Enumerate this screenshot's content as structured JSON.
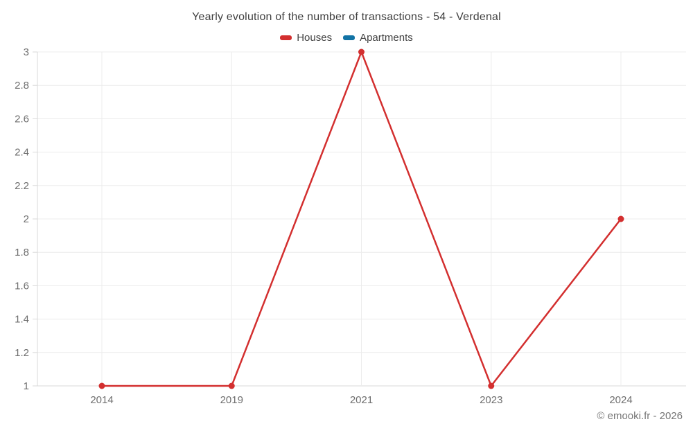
{
  "title": "Yearly evolution of the number of transactions - 54 - Verdenal",
  "legend": [
    {
      "label": "Houses",
      "color": "#d32f2f"
    },
    {
      "label": "Apartments",
      "color": "#1273a5"
    }
  ],
  "footer": {
    "copyright": "© emooki.fr - 2026"
  },
  "colors": {
    "gridline": "#ececec",
    "axis": "#d9d9d9",
    "tick_label": "#6e6e6e"
  },
  "chart_data": {
    "type": "line",
    "categories": [
      "2014",
      "2019",
      "2021",
      "2023",
      "2024"
    ],
    "series": [
      {
        "name": "Houses",
        "color": "#d32f2f",
        "values": [
          1,
          1,
          3,
          1,
          2
        ]
      },
      {
        "name": "Apartments",
        "color": "#1273a5",
        "values": []
      }
    ],
    "title": "Yearly evolution of the number of transactions - 54 - Verdenal",
    "xlabel": "",
    "ylabel": "",
    "ylim": [
      1,
      3
    ],
    "yticks": [
      1,
      1.2,
      1.4,
      1.6,
      1.8,
      2,
      2.2,
      2.4,
      2.6,
      2.8,
      3
    ],
    "grid": true,
    "legend_position": "top"
  }
}
